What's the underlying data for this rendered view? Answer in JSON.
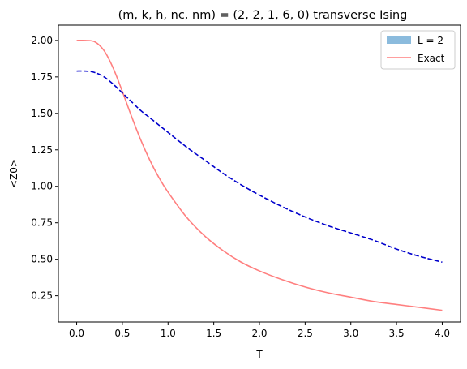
{
  "chart_data": {
    "type": "line",
    "title": "(m, k, h, nc, nm) = (2, 2, 1, 6, 0) transverse Ising",
    "xlabel": "T",
    "ylabel": "<Z0>",
    "xlim": [
      -0.2,
      4.2
    ],
    "ylim": [
      0.07,
      2.105
    ],
    "x_ticks": [
      0.0,
      0.5,
      1.0,
      1.5,
      2.0,
      2.5,
      3.0,
      3.5,
      4.0
    ],
    "x_tick_labels": [
      "0.0",
      "0.5",
      "1.0",
      "1.5",
      "2.0",
      "2.5",
      "3.0",
      "3.5",
      "4.0"
    ],
    "y_ticks": [
      0.25,
      0.5,
      0.75,
      1.0,
      1.25,
      1.5,
      1.75,
      2.0
    ],
    "y_tick_labels": [
      "0.25",
      "0.50",
      "0.75",
      "1.00",
      "1.25",
      "1.50",
      "1.75",
      "2.00"
    ],
    "grid": false,
    "legend_position": "top-right",
    "series": [
      {
        "name": "L = 2",
        "style": "dashed",
        "legend_style": "patch",
        "color": "#0000cc",
        "legend_color": "#8bbbdd",
        "x": [
          0.0,
          0.1,
          0.2,
          0.3,
          0.4,
          0.5,
          0.6,
          0.7,
          0.8,
          0.9,
          1.0,
          1.2,
          1.4,
          1.6,
          1.8,
          2.0,
          2.25,
          2.5,
          2.75,
          3.0,
          3.25,
          3.5,
          3.75,
          4.0
        ],
        "y": [
          1.79,
          1.79,
          1.78,
          1.75,
          1.7,
          1.64,
          1.58,
          1.52,
          1.47,
          1.42,
          1.37,
          1.27,
          1.18,
          1.09,
          1.01,
          0.94,
          0.86,
          0.79,
          0.73,
          0.68,
          0.63,
          0.57,
          0.52,
          0.48
        ]
      },
      {
        "name": "Exact",
        "style": "solid",
        "legend_style": "line",
        "color": "#ff7f7f",
        "x": [
          0.0,
          0.1,
          0.2,
          0.3,
          0.4,
          0.5,
          0.6,
          0.7,
          0.8,
          0.9,
          1.0,
          1.2,
          1.4,
          1.6,
          1.8,
          2.0,
          2.25,
          2.5,
          2.75,
          3.0,
          3.25,
          3.5,
          3.75,
          4.0
        ],
        "y": [
          2.0,
          2.0,
          1.99,
          1.93,
          1.81,
          1.65,
          1.48,
          1.32,
          1.18,
          1.06,
          0.96,
          0.79,
          0.66,
          0.56,
          0.48,
          0.42,
          0.36,
          0.31,
          0.27,
          0.24,
          0.21,
          0.19,
          0.17,
          0.15
        ]
      }
    ]
  }
}
